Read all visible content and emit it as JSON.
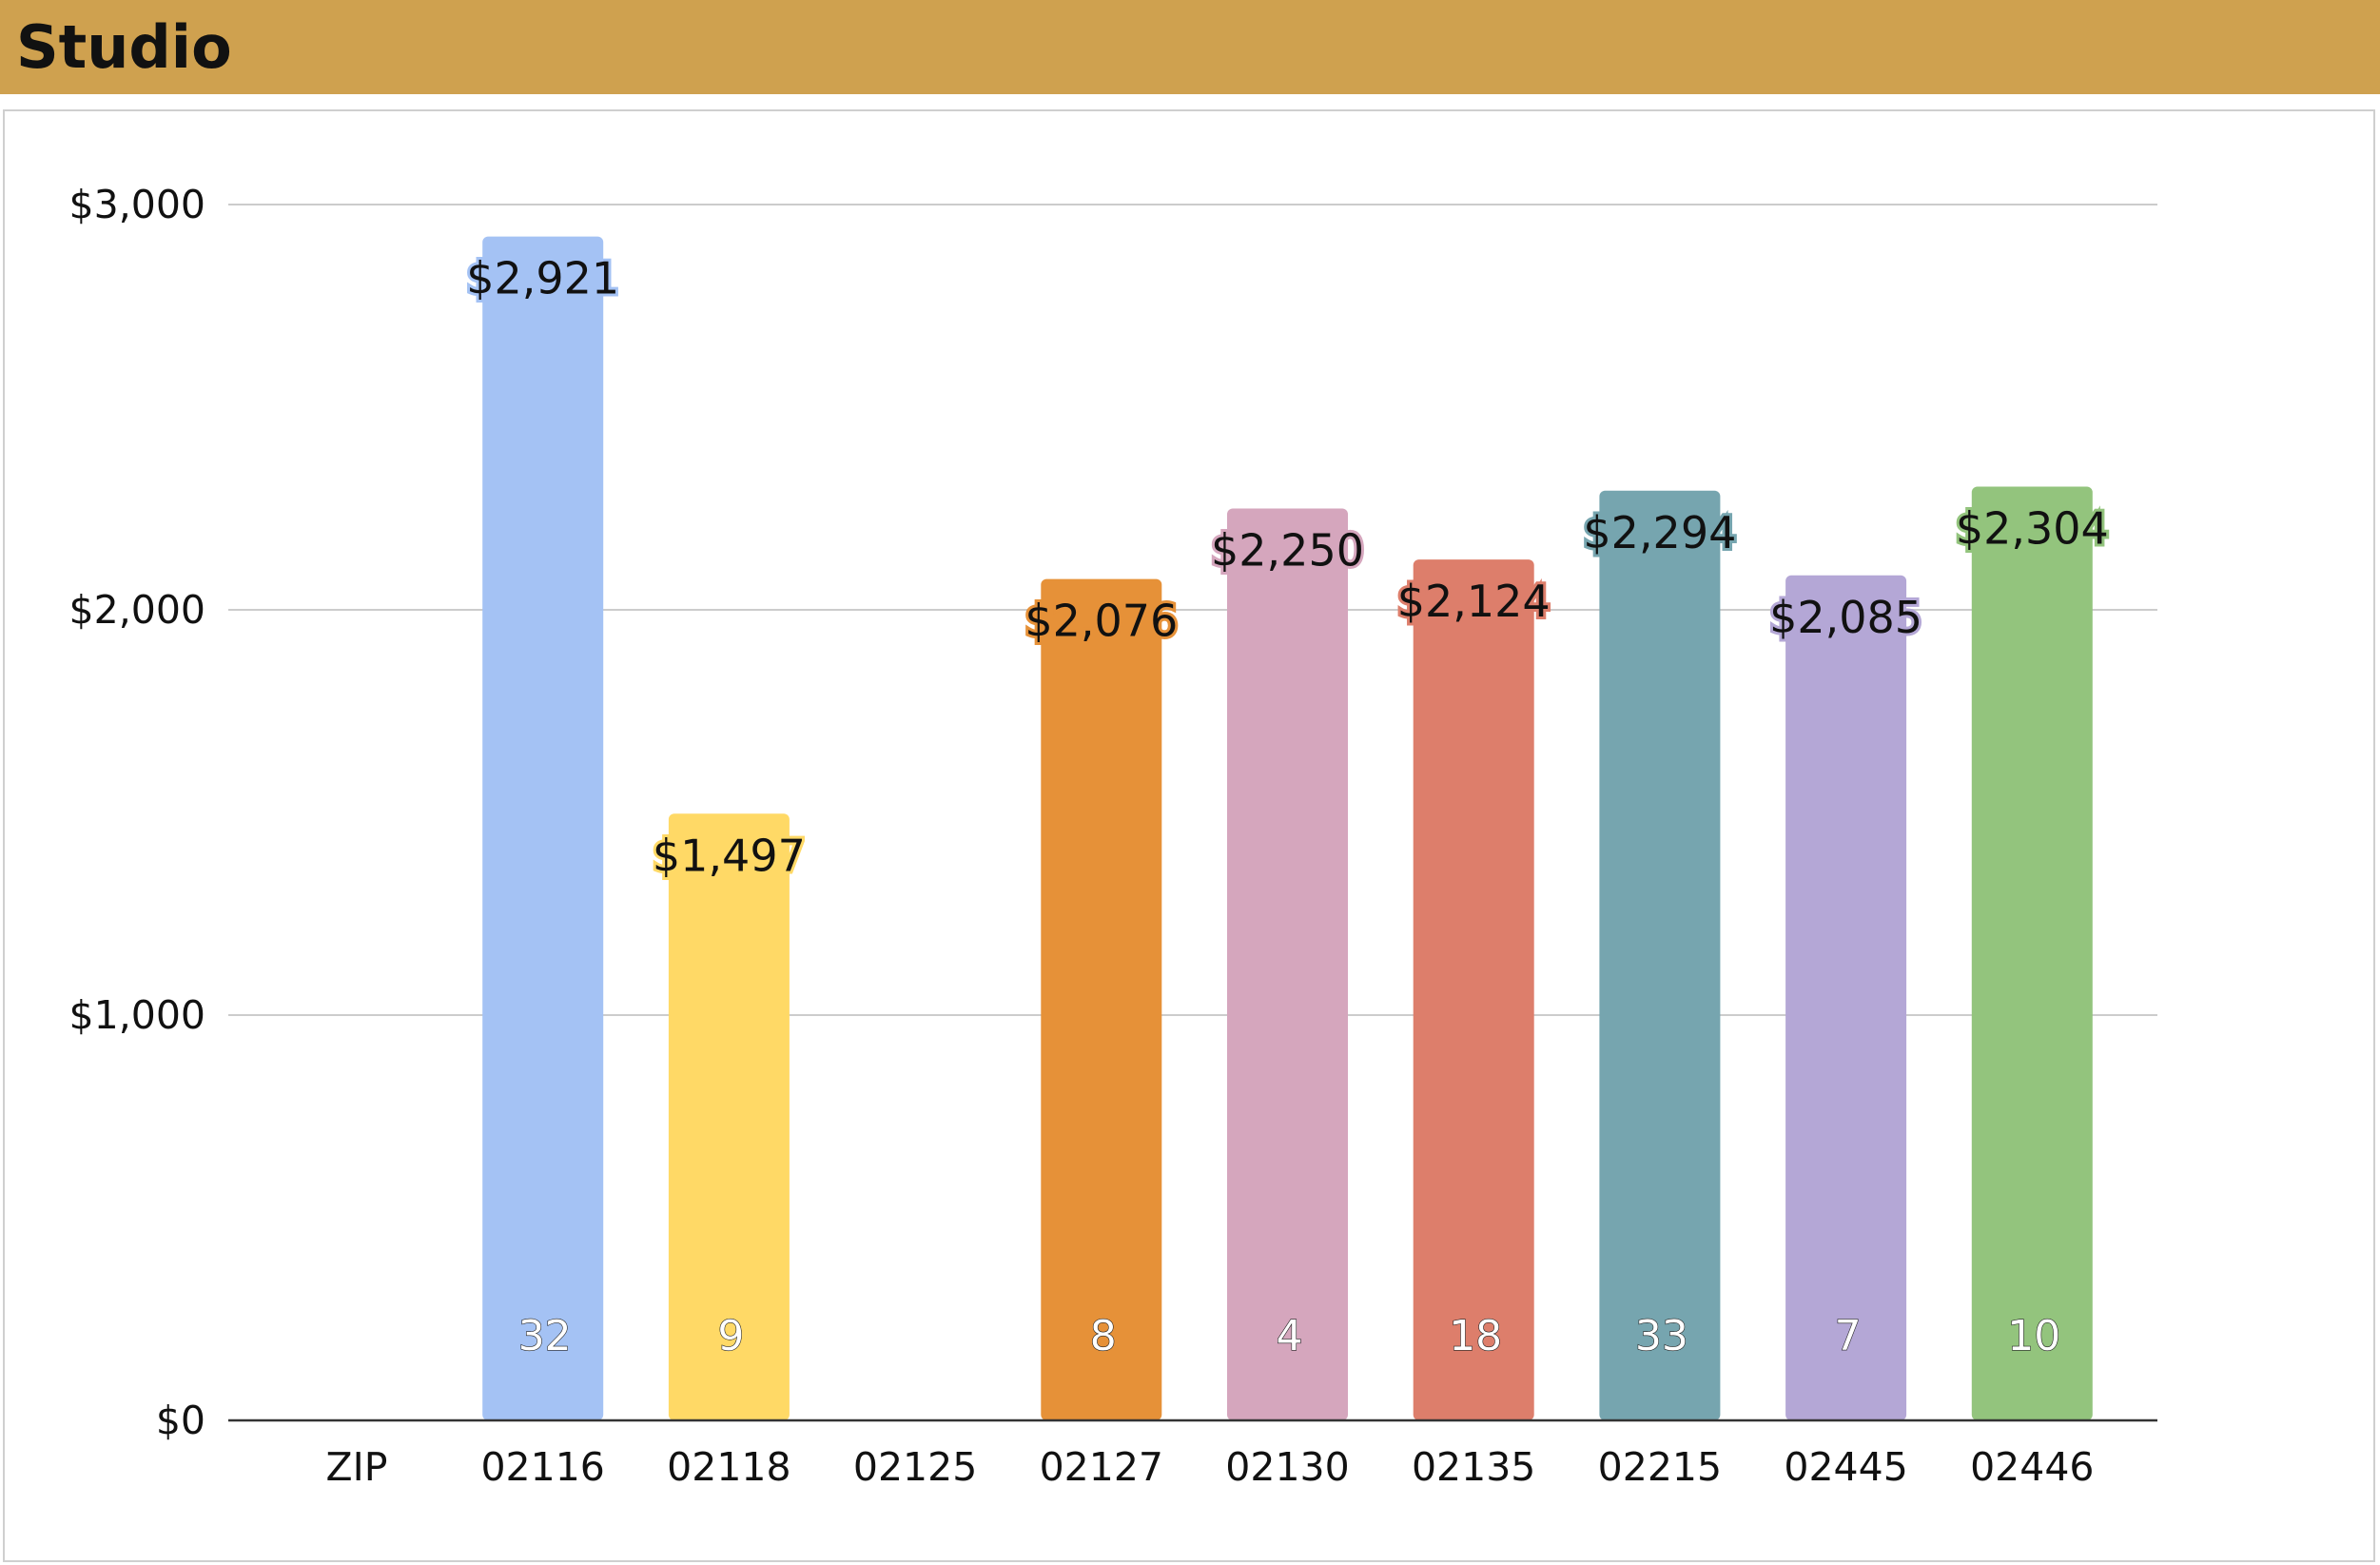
{
  "header": {
    "title": "Studio"
  },
  "chart_data": {
    "type": "bar",
    "categories": [
      "ZIP",
      "02116",
      "02118",
      "02125",
      "02127",
      "02130",
      "02135",
      "02215",
      "02445",
      "02446"
    ],
    "series": [
      {
        "values": [
          null,
          2921,
          1497,
          null,
          2076,
          2250,
          2124,
          2294,
          2085,
          2304
        ],
        "value_labels": [
          "",
          "$2,921",
          "$1,497",
          "",
          "$2,076",
          "$2,250",
          "$2,124",
          "$2,294",
          "$2,085",
          "$2,304"
        ],
        "count_labels": [
          "",
          "32",
          "9",
          "",
          "8",
          "4",
          "18",
          "33",
          "7",
          "10"
        ]
      }
    ],
    "colors": [
      "#ffffff",
      "#a4c2f4",
      "#ffd966",
      "#ffffff",
      "#e69138",
      "#d5a6bd",
      "#dd7e6b",
      "#76a5af",
      "#b4a7d6",
      "#93c47d"
    ],
    "y_ticks": [
      0,
      1000,
      2000,
      3000
    ],
    "y_tick_labels": [
      "$0",
      "$1,000",
      "$2,000",
      "$3,000"
    ],
    "ylim": [
      0,
      3000
    ],
    "grid": true,
    "legend": "none",
    "title": "",
    "xlabel": "",
    "ylabel": ""
  }
}
